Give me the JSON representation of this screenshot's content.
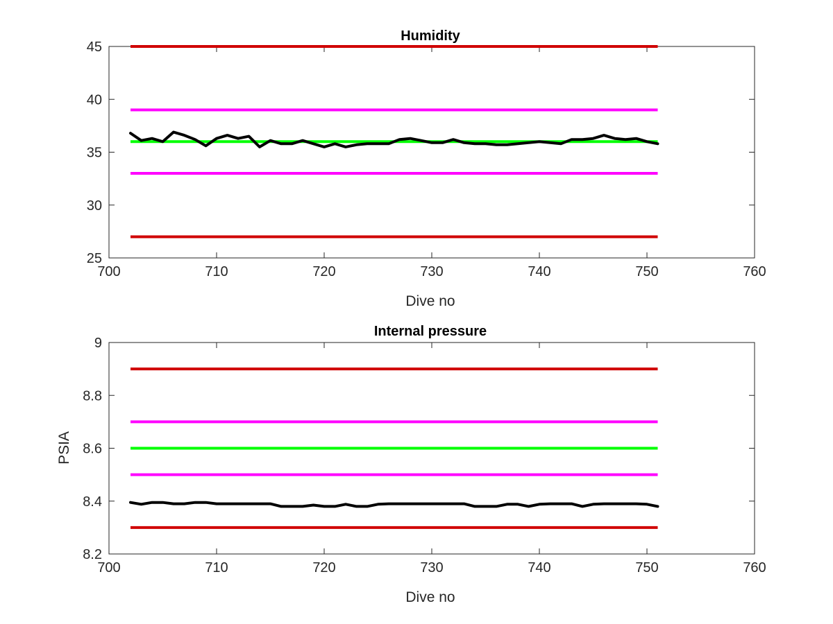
{
  "chart_data": [
    {
      "type": "line",
      "title": "Humidity",
      "xlabel": "Dive no",
      "ylabel": "",
      "xlim": [
        700,
        760
      ],
      "ylim": [
        25,
        45
      ],
      "xticks": [
        "700",
        "710",
        "720",
        "730",
        "740",
        "750",
        "760"
      ],
      "yticks": [
        "25",
        "30",
        "35",
        "40",
        "45"
      ],
      "grid": false,
      "reference_lines": [
        {
          "y": 45,
          "x": [
            702,
            751
          ],
          "color": "#d00000"
        },
        {
          "y": 39,
          "x": [
            702,
            751
          ],
          "color": "#ff00ff"
        },
        {
          "y": 36,
          "x": [
            702,
            751
          ],
          "color": "#00ff00"
        },
        {
          "y": 33,
          "x": [
            702,
            751
          ],
          "color": "#ff00ff"
        },
        {
          "y": 27,
          "x": [
            702,
            751
          ],
          "color": "#d00000"
        }
      ],
      "series": [
        {
          "color": "#000000",
          "x": [
            702,
            703,
            704,
            705,
            706,
            707,
            708,
            709,
            710,
            711,
            712,
            713,
            714,
            715,
            716,
            717,
            718,
            719,
            720,
            721,
            722,
            723,
            724,
            725,
            726,
            727,
            728,
            729,
            730,
            731,
            732,
            733,
            734,
            735,
            736,
            737,
            738,
            739,
            740,
            741,
            742,
            743,
            744,
            745,
            746,
            747,
            748,
            749,
            750,
            751
          ],
          "y": [
            36.8,
            36.1,
            36.3,
            36.0,
            36.9,
            36.6,
            36.2,
            35.6,
            36.3,
            36.6,
            36.3,
            36.5,
            35.5,
            36.1,
            35.8,
            35.8,
            36.1,
            35.8,
            35.5,
            35.8,
            35.5,
            35.7,
            35.8,
            35.8,
            35.8,
            36.2,
            36.3,
            36.1,
            35.9,
            35.9,
            36.2,
            35.9,
            35.8,
            35.8,
            35.7,
            35.7,
            35.8,
            35.9,
            36.0,
            35.9,
            35.8,
            36.2,
            36.2,
            36.3,
            36.6,
            36.3,
            36.2,
            36.3,
            36.0,
            35.8
          ]
        }
      ]
    },
    {
      "type": "line",
      "title": "Internal pressure",
      "xlabel": "Dive no",
      "ylabel": "PSIA",
      "xlim": [
        700,
        760
      ],
      "ylim": [
        8.2,
        9.0
      ],
      "xticks": [
        "700",
        "710",
        "720",
        "730",
        "740",
        "750",
        "760"
      ],
      "yticks": [
        "8.2",
        "8.4",
        "8.6",
        "8.8",
        "9"
      ],
      "grid": false,
      "reference_lines": [
        {
          "y": 8.9,
          "x": [
            702,
            751
          ],
          "color": "#d00000"
        },
        {
          "y": 8.7,
          "x": [
            702,
            751
          ],
          "color": "#ff00ff"
        },
        {
          "y": 8.6,
          "x": [
            702,
            751
          ],
          "color": "#00ff00"
        },
        {
          "y": 8.5,
          "x": [
            702,
            751
          ],
          "color": "#ff00ff"
        },
        {
          "y": 8.3,
          "x": [
            702,
            751
          ],
          "color": "#d00000"
        }
      ],
      "series": [
        {
          "color": "#000000",
          "x": [
            702,
            703,
            704,
            705,
            706,
            707,
            708,
            709,
            710,
            711,
            712,
            713,
            714,
            715,
            716,
            717,
            718,
            719,
            720,
            721,
            722,
            723,
            724,
            725,
            726,
            727,
            728,
            729,
            730,
            731,
            732,
            733,
            734,
            735,
            736,
            737,
            738,
            739,
            740,
            741,
            742,
            743,
            744,
            745,
            746,
            747,
            748,
            749,
            750,
            751
          ],
          "y": [
            8.395,
            8.388,
            8.395,
            8.395,
            8.39,
            8.39,
            8.395,
            8.395,
            8.39,
            8.39,
            8.39,
            8.39,
            8.39,
            8.39,
            8.38,
            8.38,
            8.38,
            8.385,
            8.38,
            8.38,
            8.388,
            8.38,
            8.38,
            8.388,
            8.39,
            8.39,
            8.39,
            8.39,
            8.39,
            8.39,
            8.39,
            8.39,
            8.38,
            8.38,
            8.38,
            8.388,
            8.388,
            8.38,
            8.388,
            8.39,
            8.39,
            8.39,
            8.38,
            8.388,
            8.39,
            8.39,
            8.39,
            8.39,
            8.388,
            8.38
          ]
        }
      ]
    }
  ]
}
